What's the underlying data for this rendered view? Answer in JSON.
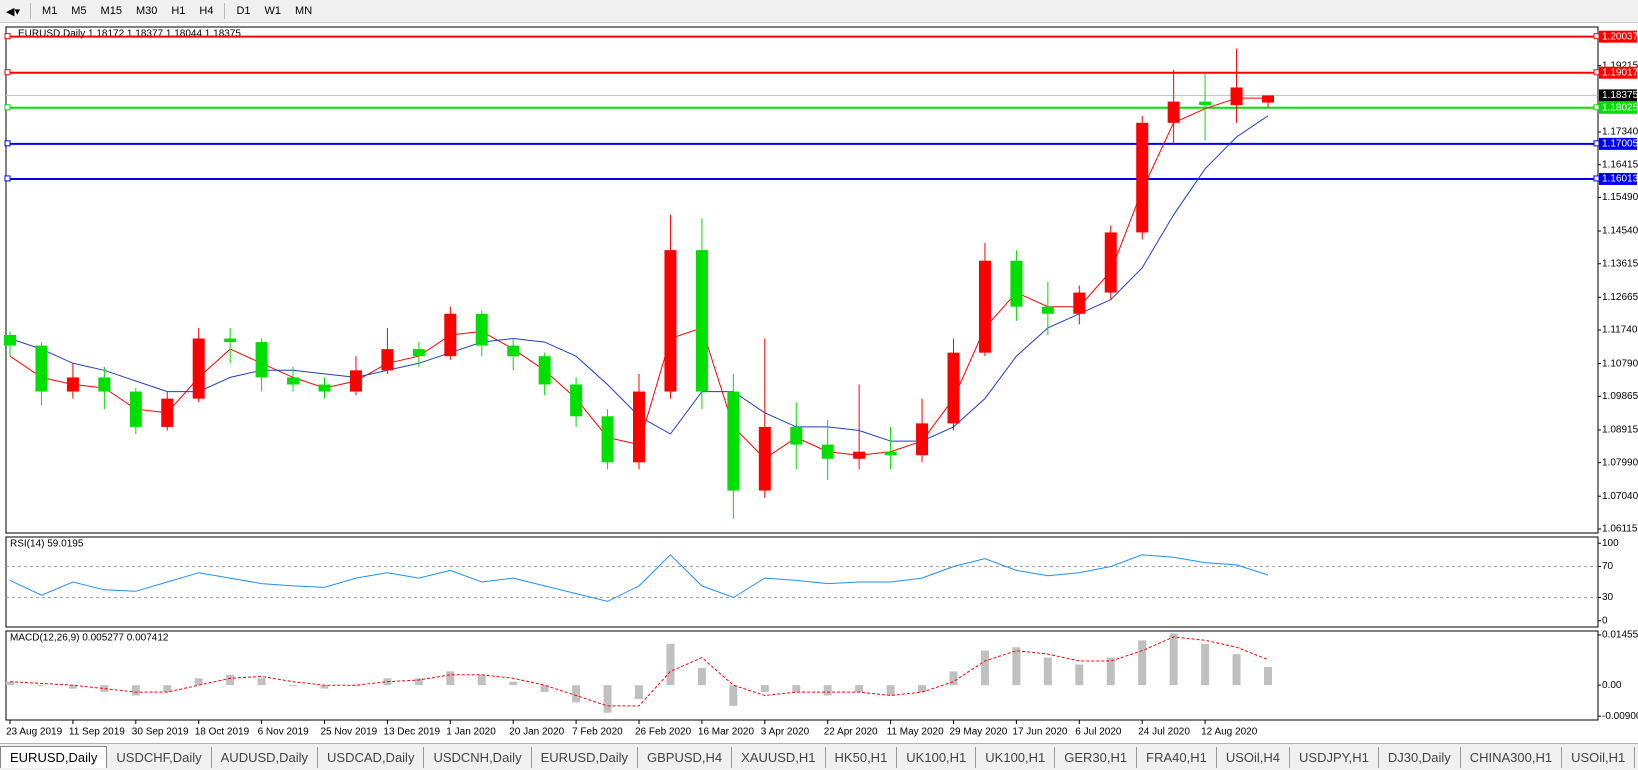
{
  "toolbar": {
    "timeframes": [
      "M1",
      "M5",
      "M15",
      "M30",
      "H1",
      "H4",
      "D1",
      "W1",
      "MN"
    ]
  },
  "tabs": [
    "EURUSD,Daily",
    "USDCHF,Daily",
    "AUDUSD,Daily",
    "USDCAD,Daily",
    "USDCNH,Daily",
    "EURUSD,Daily",
    "GBPUSD,H4",
    "XAUUSD,H1",
    "HK50,H1",
    "UK100,H1",
    "UK100,H1",
    "GER30,H1",
    "FRA40,H1",
    "USOil,H4",
    "USDJPY,H1",
    "DJ30,Daily",
    "CHINA300,H1",
    "USOil,H1"
  ],
  "chart_data": [
    {
      "type": "candlestick",
      "title": "EURUSD,Daily  1.18172 1.18377 1.18044 1.18375",
      "categories": [
        "23 Aug 2019",
        null,
        "11 Sep 2019",
        null,
        "30 Sep 2019",
        null,
        "18 Oct 2019",
        null,
        "6 Nov 2019",
        null,
        "25 Nov 2019",
        null,
        "13 Dec 2019",
        null,
        "1 Jan 2020",
        null,
        "20 Jan 2020",
        null,
        "7 Feb 2020",
        null,
        "26 Feb 2020",
        null,
        "16 Mar 2020",
        null,
        "3 Apr 2020",
        null,
        "22 Apr 2020",
        null,
        "11 May 2020",
        null,
        "29 May 2020",
        null,
        "17 Jun 2020",
        null,
        "6 Jul 2020",
        null,
        "24 Jul 2020",
        null,
        "12 Aug 2020",
        null,
        null
      ],
      "open": [
        1.116,
        1.113,
        1.1,
        1.104,
        1.1,
        1.09,
        1.098,
        1.115,
        1.114,
        1.104,
        1.102,
        1.1,
        1.106,
        1.112,
        1.11,
        1.122,
        1.113,
        1.11,
        1.102,
        1.093,
        1.08,
        1.1,
        1.14,
        1.1,
        1.072,
        1.09,
        1.085,
        1.081,
        1.083,
        1.082,
        1.091,
        1.111,
        1.137,
        1.124,
        1.122,
        1.128,
        1.145,
        1.176,
        1.182,
        1.181,
        1.18172
      ],
      "high": [
        1.117,
        1.114,
        1.108,
        1.107,
        1.101,
        1.1,
        1.118,
        1.118,
        1.115,
        1.107,
        1.104,
        1.11,
        1.118,
        1.114,
        1.124,
        1.123,
        1.115,
        1.111,
        1.104,
        1.095,
        1.105,
        1.15,
        1.149,
        1.105,
        1.115,
        1.097,
        1.092,
        1.102,
        1.09,
        1.098,
        1.115,
        1.142,
        1.14,
        1.131,
        1.13,
        1.147,
        1.178,
        1.191,
        1.19,
        1.197,
        1.18377
      ],
      "low": [
        1.11,
        1.096,
        1.098,
        1.095,
        1.088,
        1.089,
        1.097,
        1.108,
        1.1,
        1.1,
        1.098,
        1.099,
        1.105,
        1.107,
        1.109,
        1.11,
        1.106,
        1.099,
        1.09,
        1.078,
        1.078,
        1.098,
        1.095,
        1.064,
        1.07,
        1.078,
        1.075,
        1.078,
        1.078,
        1.08,
        1.089,
        1.11,
        1.12,
        1.116,
        1.119,
        1.126,
        1.143,
        1.17,
        1.171,
        1.176,
        1.18044
      ],
      "close": [
        1.113,
        1.1,
        1.104,
        1.1,
        1.09,
        1.098,
        1.115,
        1.114,
        1.104,
        1.102,
        1.1,
        1.106,
        1.112,
        1.11,
        1.122,
        1.113,
        1.11,
        1.102,
        1.093,
        1.08,
        1.1,
        1.14,
        1.1,
        1.072,
        1.09,
        1.085,
        1.081,
        1.083,
        1.082,
        1.091,
        1.111,
        1.137,
        1.124,
        1.122,
        1.128,
        1.145,
        1.176,
        1.182,
        1.181,
        1.186,
        1.18375
      ],
      "up_color": "#ff0000",
      "down_color": "#00e000",
      "overlays": [
        {
          "color": "#ff0000",
          "values": [
            1.11,
            1.104,
            1.102,
            1.101,
            1.095,
            1.094,
            1.104,
            1.112,
            1.108,
            1.104,
            1.101,
            1.103,
            1.108,
            1.11,
            1.116,
            1.117,
            1.112,
            1.106,
            1.098,
            1.087,
            1.085,
            1.115,
            1.118,
            1.09,
            1.081,
            1.087,
            1.083,
            1.082,
            1.083,
            1.086,
            1.098,
            1.118,
            1.128,
            1.124,
            1.124,
            1.134,
            1.157,
            1.176,
            1.18,
            1.183,
            1.183
          ]
        },
        {
          "color": "#1f3fbf",
          "values": [
            1.115,
            1.112,
            1.108,
            1.106,
            1.103,
            1.1,
            1.1,
            1.104,
            1.106,
            1.106,
            1.105,
            1.104,
            1.106,
            1.108,
            1.111,
            1.114,
            1.115,
            1.114,
            1.11,
            1.102,
            1.093,
            1.088,
            1.1,
            1.1,
            1.094,
            1.09,
            1.09,
            1.089,
            1.086,
            1.086,
            1.09,
            1.098,
            1.11,
            1.118,
            1.122,
            1.126,
            1.135,
            1.15,
            1.163,
            1.172,
            1.178
          ]
        }
      ],
      "levels": [
        {
          "value": 1.20037,
          "color": "#ff0000"
        },
        {
          "value": 1.19017,
          "color": "#ff0000"
        },
        {
          "value": 1.18025,
          "color": "#00e000"
        },
        {
          "value": 1.17005,
          "color": "#0000ff"
        },
        {
          "value": 1.16013,
          "color": "#0000ff"
        }
      ],
      "last_price": 1.18375,
      "ylim": [
        1.06,
        1.2031
      ],
      "yticks": [
        1.19215,
        {
          "value": 1.1734,
          "label": "1.17340"
        },
        1.16415,
        {
          "value": 1.1549,
          "label": "1.15490"
        },
        {
          "value": 1.1454,
          "label": "1.14540"
        },
        1.13615,
        1.12665,
        {
          "value": 1.1174,
          "label": "1.11740"
        },
        {
          "value": 1.1079,
          "label": "1.10790"
        },
        1.09865,
        1.08915,
        {
          "value": 1.0799,
          "label": "1.07990"
        },
        {
          "value": 1.0704,
          "label": "1.07040"
        },
        1.06115
      ]
    },
    {
      "type": "line",
      "title": "RSI(14) 59.0195",
      "color": "#1e90ff",
      "values": [
        52,
        33,
        50,
        40,
        38,
        50,
        62,
        55,
        48,
        45,
        43,
        55,
        62,
        55,
        65,
        50,
        55,
        45,
        35,
        25,
        45,
        85,
        45,
        30,
        55,
        52,
        48,
        50,
        50,
        55,
        70,
        80,
        65,
        58,
        62,
        70,
        85,
        82,
        75,
        72,
        59.0195
      ],
      "levels": [
        70,
        30
      ],
      "ylim": [
        -8,
        108
      ],
      "yticks": [
        100,
        70,
        30,
        0
      ]
    },
    {
      "type": "macd",
      "title": "MACD(12,26,9) 0.005277 0.007412",
      "color": "#c0c0c0",
      "signal_color": "#ff0000",
      "values": [
        0.001,
        0.0,
        -0.001,
        -0.002,
        -0.003,
        -0.002,
        0.002,
        0.003,
        0.002,
        0.0,
        -0.001,
        0.0,
        0.002,
        0.002,
        0.004,
        0.003,
        0.001,
        -0.002,
        -0.005,
        -0.008,
        -0.004,
        0.012,
        0.005,
        -0.006,
        -0.002,
        -0.002,
        -0.003,
        -0.002,
        -0.003,
        -0.002,
        0.004,
        0.01,
        0.011,
        0.008,
        0.006,
        0.008,
        0.013,
        0.015,
        0.012,
        0.009,
        0.005277
      ],
      "signal": [
        0.001,
        0.0005,
        0.0,
        -0.001,
        -0.002,
        -0.002,
        0.0,
        0.002,
        0.0025,
        0.001,
        0.0,
        0.0,
        0.001,
        0.0015,
        0.003,
        0.003,
        0.002,
        0.0,
        -0.003,
        -0.006,
        -0.006,
        0.004,
        0.008,
        0.0,
        -0.003,
        -0.002,
        -0.002,
        -0.002,
        -0.003,
        -0.002,
        0.001,
        0.007,
        0.01,
        0.009,
        0.007,
        0.007,
        0.01,
        0.014,
        0.013,
        0.011,
        0.007412
      ],
      "ylim": [
        -0.0101,
        0.0157
      ],
      "yticks": [
        0.014556,
        {
          "value": 0,
          "label": "0.00"
        },
        {
          "value": -0.009,
          "label": "-0.00900"
        }
      ]
    }
  ]
}
